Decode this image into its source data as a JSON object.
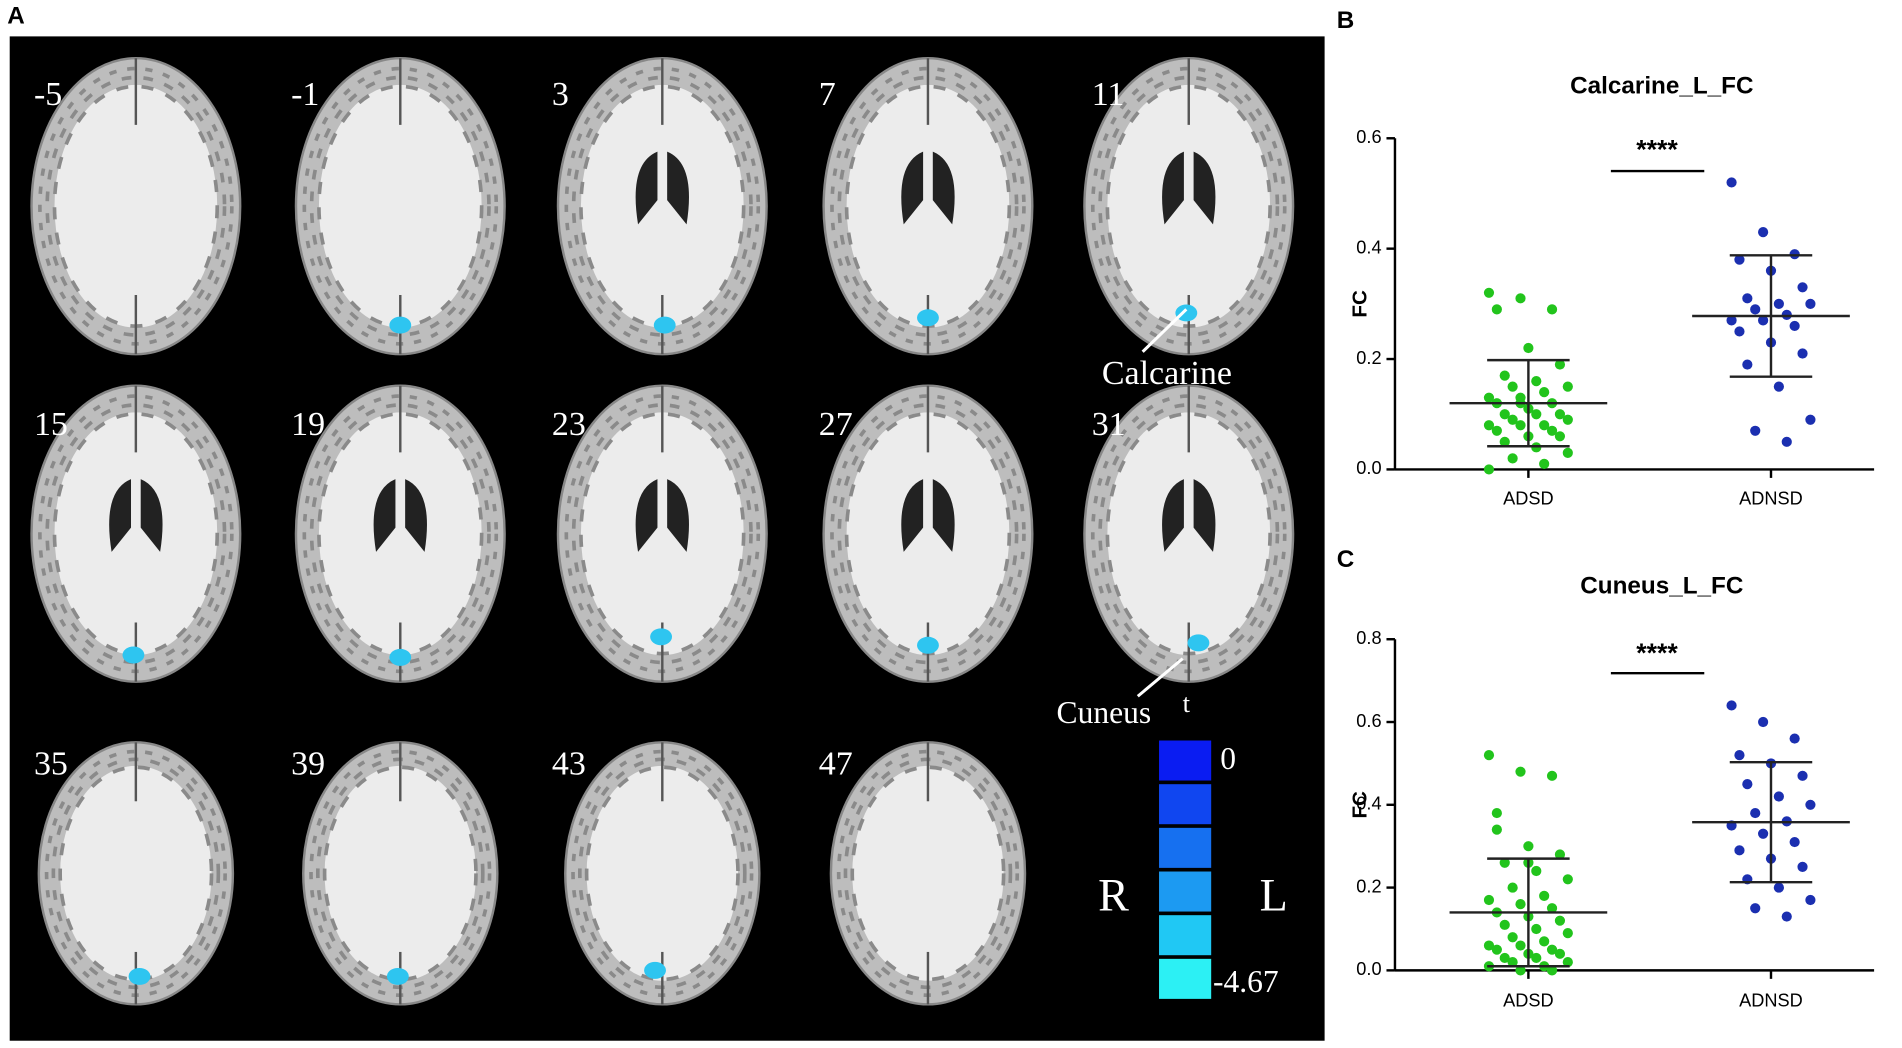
{
  "panel_a": {
    "label": "A",
    "slices": [
      -5,
      -1,
      3,
      7,
      11,
      15,
      19,
      23,
      27,
      31,
      35,
      39,
      43,
      47
    ],
    "annotations": [
      "Calcarine",
      "Cuneus"
    ],
    "colorbar": {
      "title": "t",
      "max": 0,
      "min": -4.67
    },
    "orientation": {
      "right": "R",
      "left": "L"
    }
  },
  "chart_data": [
    {
      "type": "strip",
      "panel": "B",
      "title": "Calcarine_L_FC",
      "ylabel": "FC",
      "categories": [
        "ADSD",
        "ADNSD"
      ],
      "ylim": [
        0,
        0.6
      ],
      "yticks": [
        {
          "value": 0,
          "label": "0.0"
        },
        {
          "value": 0.2,
          "label": "0.2"
        },
        {
          "value": 0.4,
          "label": "0.4"
        },
        {
          "value": 0.6,
          "label": "0.6"
        }
      ],
      "significance": "****",
      "groups": [
        {
          "color": "#22c41c",
          "mean": 0.12,
          "sd": 0.078,
          "values": [
            0.32,
            0.31,
            0.29,
            0.29,
            0.22,
            0.19,
            0.17,
            0.16,
            0.15,
            0.15,
            0.14,
            0.13,
            0.13,
            0.12,
            0.12,
            0.11,
            0.1,
            0.1,
            0.1,
            0.09,
            0.09,
            0.08,
            0.08,
            0.08,
            0.07,
            0.07,
            0.06,
            0.06,
            0.05,
            0.04,
            0.03,
            0.02,
            0.01,
            0.0,
            0.12
          ]
        },
        {
          "color": "#1b2fb0",
          "mean": 0.278,
          "sd": 0.11,
          "values": [
            0.52,
            0.43,
            0.39,
            0.38,
            0.36,
            0.33,
            0.31,
            0.3,
            0.3,
            0.29,
            0.28,
            0.27,
            0.27,
            0.26,
            0.25,
            0.23,
            0.21,
            0.19,
            0.15,
            0.09,
            0.07,
            0.05
          ]
        }
      ]
    },
    {
      "type": "strip",
      "panel": "C",
      "title": "Cuneus_L_FC",
      "ylabel": "FC",
      "categories": [
        "ADSD",
        "ADNSD"
      ],
      "ylim": [
        0,
        0.8
      ],
      "yticks": [
        {
          "value": 0,
          "label": "0.0"
        },
        {
          "value": 0.2,
          "label": "0.2"
        },
        {
          "value": 0.4,
          "label": "0.4"
        },
        {
          "value": 0.6,
          "label": "0.6"
        },
        {
          "value": 0.8,
          "label": "0.8"
        }
      ],
      "significance": "****",
      "groups": [
        {
          "color": "#22c41c",
          "mean": 0.14,
          "sd": 0.13,
          "values": [
            0.52,
            0.48,
            0.47,
            0.38,
            0.3,
            0.28,
            0.26,
            0.24,
            0.22,
            0.2,
            0.18,
            0.17,
            0.16,
            0.15,
            0.14,
            0.13,
            0.12,
            0.11,
            0.1,
            0.09,
            0.08,
            0.07,
            0.06,
            0.06,
            0.05,
            0.05,
            0.04,
            0.04,
            0.03,
            0.03,
            0.02,
            0.02,
            0.01,
            0.01,
            0.0,
            0.0,
            0.34,
            0.26
          ]
        },
        {
          "color": "#1b2fb0",
          "mean": 0.358,
          "sd": 0.145,
          "values": [
            0.64,
            0.6,
            0.56,
            0.52,
            0.5,
            0.47,
            0.45,
            0.42,
            0.4,
            0.38,
            0.36,
            0.35,
            0.33,
            0.31,
            0.29,
            0.27,
            0.25,
            0.22,
            0.2,
            0.17,
            0.15,
            0.13
          ]
        }
      ]
    }
  ]
}
